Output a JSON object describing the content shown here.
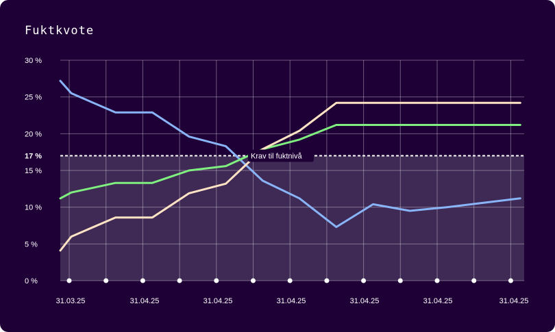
{
  "chart_data": {
    "type": "line",
    "title": "Fuktkvote",
    "ylim": [
      0,
      30
    ],
    "y_ticks": [
      "0 %",
      "5 %",
      "10 %",
      "15 %",
      "20 %",
      "25 %",
      "30 %"
    ],
    "x_ticks": [
      "31.03.25",
      "31.04.25",
      "31.04.25",
      "31.04.25",
      "31.04.25",
      "31.04.25",
      "31.04.25"
    ],
    "grid": true,
    "series": [
      {
        "color": "#8ab4f8",
        "x": [
          0,
          0.3,
          1.5,
          2.5,
          3.5,
          4.5,
          5.5,
          6.5,
          7.5,
          8.5,
          9.5,
          10.5,
          11.5,
          12.5
        ],
        "values": [
          27.2,
          25.5,
          22.9,
          22.9,
          19.6,
          18.3,
          13.6,
          11.2,
          7.3,
          10.4,
          9.5,
          10.0,
          10.6,
          11.2
        ]
      },
      {
        "color": "#7ff07f",
        "x": [
          0,
          0.3,
          1.5,
          2.5,
          3.5,
          4.5,
          5.5,
          6.5,
          7.5,
          8.5,
          9.5,
          10.5,
          11.5,
          12.5
        ],
        "values": [
          11.2,
          12.0,
          13.3,
          13.3,
          15.0,
          15.6,
          17.9,
          19.2,
          21.2,
          21.2,
          21.2,
          21.2,
          21.2,
          21.2
        ]
      },
      {
        "color": "#ffe3c4",
        "x": [
          0,
          0.3,
          1.5,
          2.5,
          3.5,
          4.5,
          5.5,
          6.5,
          7.5,
          8.5,
          9.5,
          10.5,
          11.5,
          12.5
        ],
        "values": [
          4.1,
          6.0,
          8.6,
          8.6,
          11.9,
          13.2,
          17.9,
          20.4,
          24.2,
          24.2,
          24.2,
          24.2,
          24.2,
          24.2
        ]
      }
    ],
    "threshold": {
      "value": 17,
      "label": "17 %",
      "annotation": "Krav til fuktnivå"
    },
    "marker_count": 13
  },
  "colors": {
    "background": "#1f0036",
    "shade": "#3f2a55",
    "grid": "rgba(255,255,255,0.35)"
  }
}
